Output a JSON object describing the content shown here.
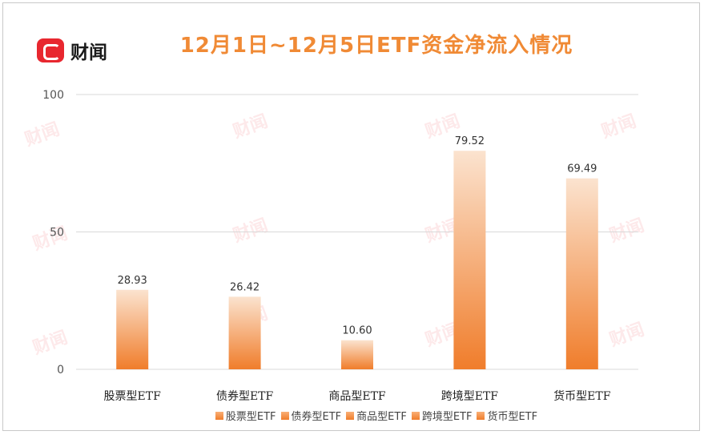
{
  "brand": {
    "logo_text": "财闻",
    "watermark_text": "财闻"
  },
  "title": "12月1日~12月5日ETF资金净流入情况",
  "chart_data": {
    "type": "bar",
    "categories": [
      "股票型ETF",
      "债券型ETF",
      "商品型ETF",
      "跨境型ETF",
      "货币型ETF"
    ],
    "values": [
      28.93,
      26.42,
      10.6,
      79.52,
      69.49
    ],
    "value_labels": [
      "28.93",
      "26.42",
      "10.60",
      "79.52",
      "69.49"
    ],
    "ylim": [
      0,
      100
    ],
    "yticks": [
      0,
      50,
      100
    ],
    "grid": true,
    "legend": "bottom",
    "legend_entries": [
      "股票型ETF",
      "债券型ETF",
      "商品型ETF",
      "跨境型ETF",
      "货币型ETF"
    ],
    "colors": {
      "bar_top": "#fbe3cf",
      "bar_bottom": "#f07d2b",
      "grid": "#d9d9d9",
      "title": "#f08a35"
    }
  }
}
